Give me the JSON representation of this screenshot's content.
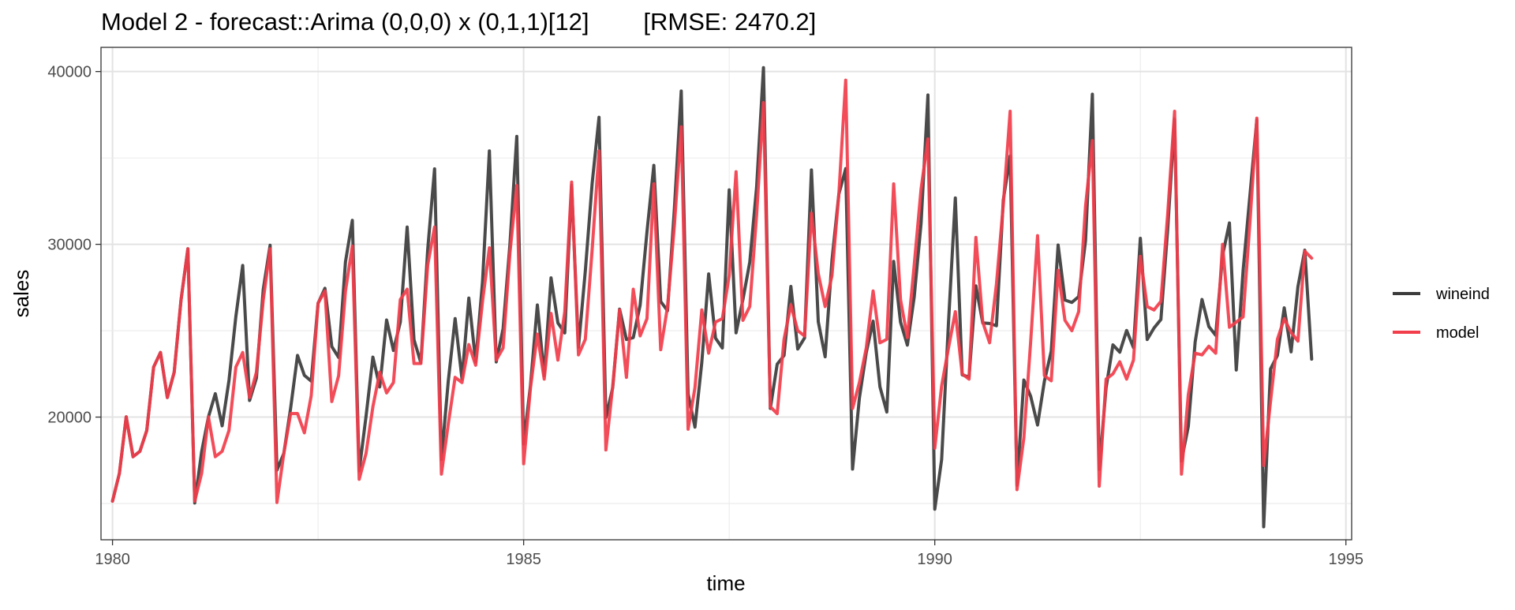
{
  "chart_data": {
    "type": "line",
    "title": "Model 2 - forecast::Arima (0,0,0) x (0,1,1)[12]        [RMSE: 2470.2]",
    "xlabel": "time",
    "ylabel": "sales",
    "xlim": [
      1979.86,
      1995.07
    ],
    "ylim": [
      12900,
      41400
    ],
    "x_ticks": [
      1980,
      1985,
      1990,
      1995
    ],
    "x_tick_labels": [
      "1980",
      "1985",
      "1990",
      "1995"
    ],
    "y_ticks": [
      20000,
      30000,
      40000
    ],
    "y_tick_labels": [
      "20000",
      "30000",
      "40000"
    ],
    "grid": true,
    "legend_position": "right",
    "x_start": 1980,
    "x_step": "monthly",
    "series": [
      {
        "name": "wineind",
        "color": "#3b3b3b",
        "values": [
          15136,
          16733,
          20016,
          17708,
          18019,
          19227,
          22893,
          23739,
          21133,
          22591,
          26786,
          29740,
          15028,
          17977,
          20008,
          21354,
          19498,
          22125,
          25817,
          28779,
          20960,
          22254,
          27392,
          29945,
          16933,
          17892,
          20533,
          23569,
          22417,
          22084,
          26580,
          27454,
          24081,
          23451,
          28991,
          31386,
          16896,
          20045,
          23471,
          21747,
          25621,
          23859,
          25500,
          30998,
          24475,
          23145,
          29701,
          34365,
          17556,
          22077,
          25702,
          22214,
          26886,
          23191,
          27831,
          35406,
          23195,
          25110,
          30009,
          36242,
          18450,
          21845,
          26488,
          22394,
          28057,
          25451,
          24872,
          33424,
          24052,
          28449,
          33533,
          37351,
          19969,
          21701,
          26249,
          24493,
          24603,
          26485,
          30723,
          34569,
          26689,
          26157,
          32064,
          38870,
          21337,
          19419,
          23166,
          28286,
          24570,
          24001,
          33151,
          24878,
          26804,
          28967,
          33311,
          40226,
          20504,
          23060,
          23562,
          27562,
          23940,
          24584,
          34303,
          25517,
          23494,
          29095,
          32903,
          34379,
          16991,
          21109,
          23740,
          25552,
          21752,
          20294,
          29009,
          25500,
          24166,
          26960,
          31222,
          38641,
          14672,
          17543,
          25453,
          32683,
          22449,
          22316,
          27595,
          25451,
          25421,
          25288,
          32568,
          35110,
          16052,
          22146,
          21198,
          19543,
          22084,
          23816,
          29961,
          26773,
          26635,
          26972,
          30207,
          38687,
          16974,
          21697,
          24179,
          23757,
          25013,
          24019,
          30345,
          24488,
          25156,
          25650,
          30923,
          37240,
          17466,
          19463,
          24352,
          26805,
          25236,
          24735,
          29356,
          31234,
          22724,
          28496,
          32857,
          37198,
          13652,
          22784,
          23565,
          26323,
          23779,
          27549,
          29660,
          23356
        ]
      },
      {
        "name": "model",
        "color": "#f23d4b",
        "values": [
          15136,
          16733,
          20016,
          17708,
          18019,
          19227,
          22893,
          23739,
          21133,
          22591,
          26786,
          29740,
          15136,
          16733,
          20016,
          17708,
          18019,
          19227,
          22893,
          23739,
          21133,
          22591,
          26786,
          29740,
          15060,
          17899,
          20200,
          20207,
          19089,
          21236,
          26600,
          27300,
          20900,
          22400,
          27300,
          29900,
          16400,
          17900,
          20600,
          22600,
          21400,
          22000,
          26800,
          27400,
          23100,
          23100,
          28800,
          31000,
          16700,
          19600,
          22300,
          22000,
          24200,
          23000,
          26700,
          29800,
          23300,
          24000,
          29500,
          33400,
          17300,
          21700,
          24800,
          22200,
          26000,
          23300,
          26100,
          33600,
          23600,
          24500,
          29700,
          35400,
          18100,
          21800,
          26200,
          22300,
          27400,
          24700,
          25700,
          33500,
          23900,
          26400,
          31100,
          36800,
          19300,
          21700,
          26200,
          23700,
          25500,
          25700,
          28200,
          34200,
          25600,
          26400,
          31700,
          38200,
          20600,
          20200,
          24500,
          26500,
          25000,
          24700,
          31800,
          28300,
          26400,
          28200,
          32900,
          39500,
          20500,
          22000,
          24000,
          27300,
          24300,
          24500,
          33500,
          26800,
          24600,
          28800,
          33200,
          36100,
          18200,
          21800,
          24000,
          26100,
          22500,
          22200,
          30400,
          25500,
          24300,
          27700,
          32300,
          37700,
          15800,
          18800,
          24400,
          30500,
          22400,
          22100,
          28500,
          25600,
          25000,
          26100,
          32200,
          36000,
          16000,
          22200,
          22500,
          23200,
          22200,
          23300,
          29300,
          26400,
          26200,
          26700,
          31800,
          37700,
          16700,
          21300,
          23700,
          23600,
          24100,
          23700,
          30000,
          25200,
          25500,
          25800,
          31300,
          37300,
          17200,
          20900,
          24500,
          25700,
          24900,
          24400,
          29600,
          29200
        ]
      }
    ]
  }
}
